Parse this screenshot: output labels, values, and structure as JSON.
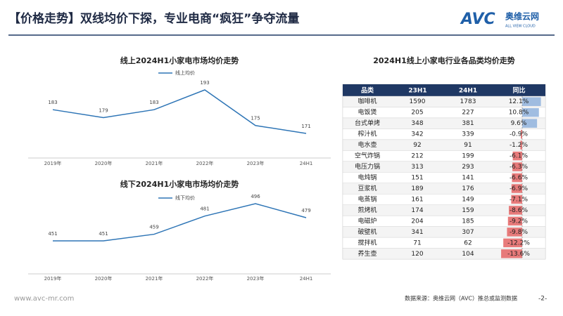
{
  "header": {
    "title": "【价格走势】双线均价下探，专业电商“疯狂”争夺流量",
    "logo_text": "AVC",
    "logo_cn": "奥维云网",
    "logo_en": "ALL VIEW CLOUD"
  },
  "chart_data": [
    {
      "type": "line",
      "title": "线上2024H1小家电市场均价走势",
      "categories": [
        "2019年",
        "2020年",
        "2021年",
        "2022年",
        "2023年",
        "24H1"
      ],
      "series": [
        {
          "name": "线上均价",
          "color": "#2e75b6",
          "values": [
            183,
            179,
            183,
            193,
            175,
            171
          ]
        }
      ]
    },
    {
      "type": "line",
      "title": "线下2024H1小家电市场均价走势",
      "categories": [
        "2019年",
        "2020年",
        "2021年",
        "2022年",
        "2023年",
        "24H1"
      ],
      "series": [
        {
          "name": "线下均价",
          "color": "#2e75b6",
          "values": [
            451,
            451,
            459,
            481,
            496,
            479
          ]
        }
      ]
    }
  ],
  "table": {
    "title": "2024H1线上小家电行业各品类均价走势",
    "columns": [
      "品类",
      "23H1",
      "24H1",
      "同比"
    ],
    "rows": [
      {
        "category": "咖啡机",
        "h1_2023": 1590,
        "h1_2024": 1783,
        "yoy": 12.1,
        "yoy_label": "12.1%"
      },
      {
        "category": "电饭煲",
        "h1_2023": 205,
        "h1_2024": 227,
        "yoy": 10.8,
        "yoy_label": "10.8%"
      },
      {
        "category": "台式单烤",
        "h1_2023": 348,
        "h1_2024": 381,
        "yoy": 9.6,
        "yoy_label": "9.6%"
      },
      {
        "category": "榨汁机",
        "h1_2023": 342,
        "h1_2024": 339,
        "yoy": -0.9,
        "yoy_label": "-0.9%"
      },
      {
        "category": "电水壶",
        "h1_2023": 92,
        "h1_2024": 91,
        "yoy": -1.2,
        "yoy_label": "-1.2%"
      },
      {
        "category": "空气炸锅",
        "h1_2023": 212,
        "h1_2024": 199,
        "yoy": -6.1,
        "yoy_label": "-6.1%"
      },
      {
        "category": "电压力锅",
        "h1_2023": 313,
        "h1_2024": 293,
        "yoy": -6.3,
        "yoy_label": "-6.3%"
      },
      {
        "category": "电炖锅",
        "h1_2023": 151,
        "h1_2024": 141,
        "yoy": -6.6,
        "yoy_label": "-6.6%"
      },
      {
        "category": "豆浆机",
        "h1_2023": 189,
        "h1_2024": 176,
        "yoy": -6.9,
        "yoy_label": "-6.9%"
      },
      {
        "category": "电蒸锅",
        "h1_2023": 161,
        "h1_2024": 149,
        "yoy": -7.1,
        "yoy_label": "-7.1%"
      },
      {
        "category": "煎烤机",
        "h1_2023": 174,
        "h1_2024": 159,
        "yoy": -8.6,
        "yoy_label": "-8.6%"
      },
      {
        "category": "电磁炉",
        "h1_2023": 204,
        "h1_2024": 185,
        "yoy": -9.2,
        "yoy_label": "-9.2%"
      },
      {
        "category": "破壁机",
        "h1_2023": 341,
        "h1_2024": 307,
        "yoy": -9.8,
        "yoy_label": "-9.8%"
      },
      {
        "category": "搅拌机",
        "h1_2023": 71,
        "h1_2024": 62,
        "yoy": -12.2,
        "yoy_label": "-12.2%"
      },
      {
        "category": "养生壶",
        "h1_2023": 120,
        "h1_2024": 104,
        "yoy": -13.6,
        "yoy_label": "-13.6%"
      }
    ]
  },
  "footer": {
    "website": "www.avc-mr.com",
    "source": "数据来源：奥维云网（AVC）推总或监测数据",
    "page": "-2-"
  }
}
